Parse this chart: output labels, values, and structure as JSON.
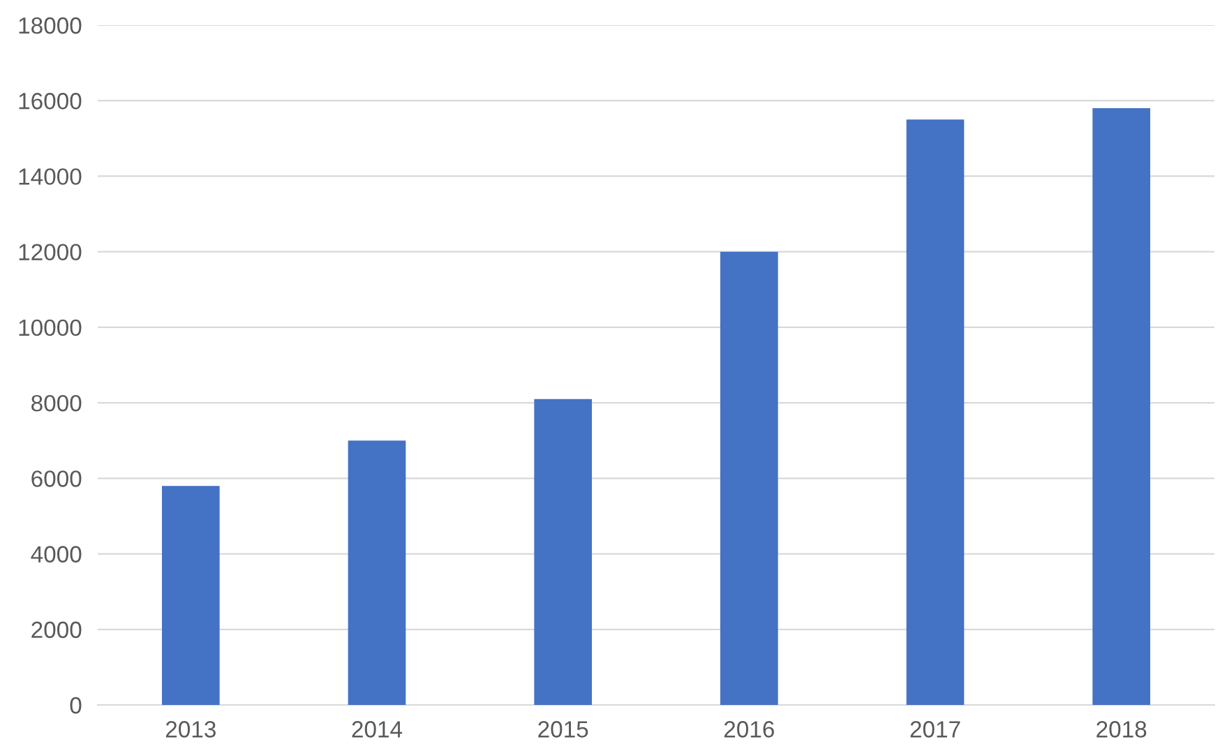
{
  "chart_data": {
    "type": "bar",
    "categories": [
      "2013",
      "2014",
      "2015",
      "2016",
      "2017",
      "2018"
    ],
    "values": [
      5800,
      7000,
      8100,
      12000,
      15500,
      15800
    ],
    "color": "#4472c4",
    "ylim": [
      0,
      18000
    ],
    "yticks": [
      0,
      2000,
      4000,
      6000,
      8000,
      10000,
      12000,
      14000,
      16000,
      18000
    ],
    "grid": "y",
    "legend": false
  }
}
